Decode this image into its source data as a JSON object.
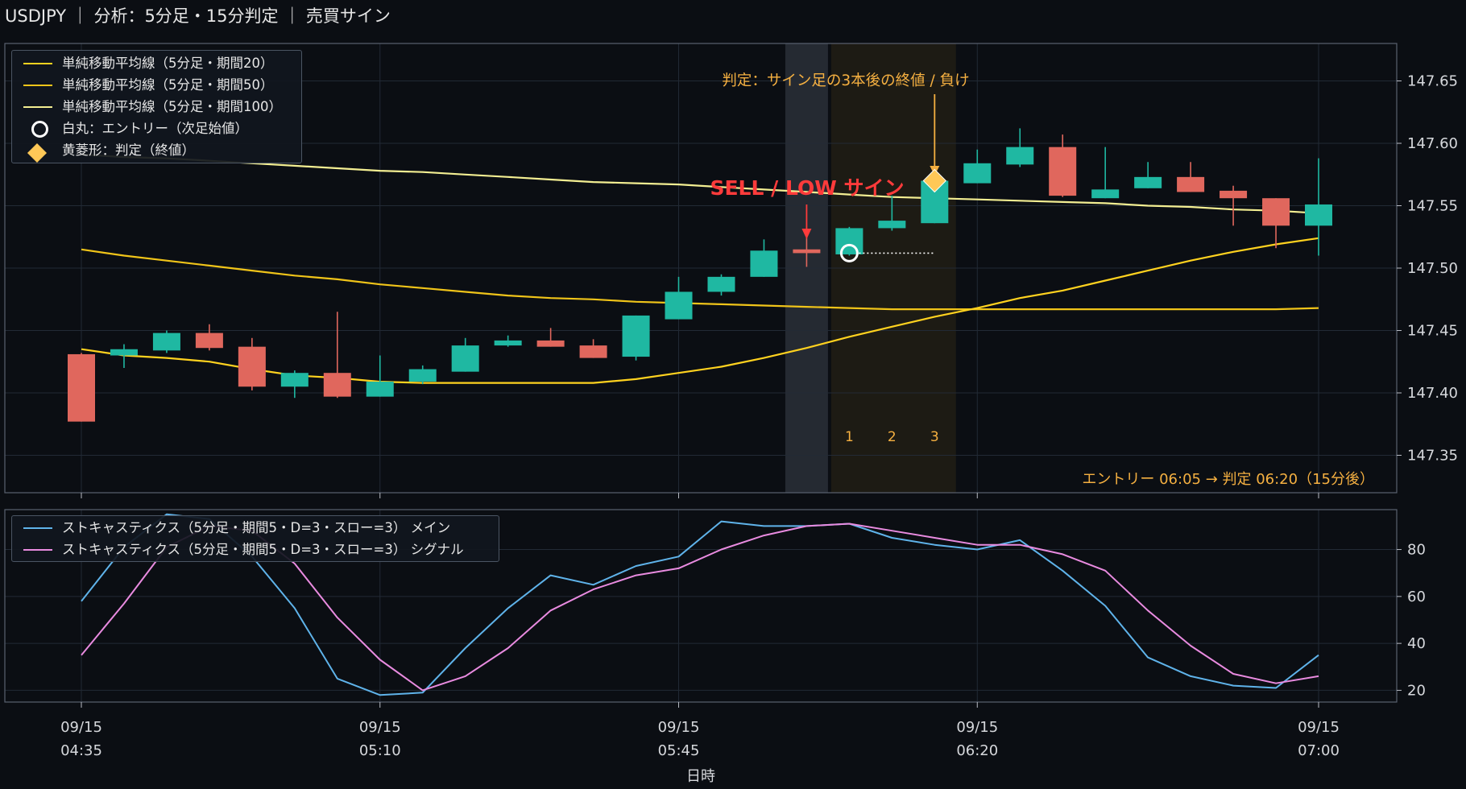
{
  "header": {
    "title": "USDJPY ｜ 分析：5分足・15分判定 ｜ 売買サイン"
  },
  "colors": {
    "bg": "#0b0e13",
    "up": "#1fb8a2",
    "down": "#e0675d",
    "sma20": "#ffd21f",
    "sma50": "#f0c419",
    "sma100": "#f3ee92",
    "stoch_main": "#5fb3ea",
    "stoch_signal": "#e98be0",
    "accent": "#f5b041",
    "signal": "#ff3b3b"
  },
  "legend_price": [
    {
      "label": "単純移動平均線（5分足・期間20）",
      "swatch": "line",
      "color": "#ffd21f"
    },
    {
      "label": "単純移動平均線（5分足・期間50）",
      "swatch": "line",
      "color": "#f0c419"
    },
    {
      "label": "単純移動平均線（5分足・期間100）",
      "swatch": "line",
      "color": "#f3ee92"
    },
    {
      "label": "白丸：エントリー（次足始値）",
      "swatch": "circle-icon",
      "color": "#ffffff"
    },
    {
      "label": "黄菱形：判定（終値）",
      "swatch": "diamond-icon",
      "color": "#ffc857"
    }
  ],
  "legend_stoch": [
    {
      "label": "ストキャスティクス（5分足・期間5・D=3・スロー=3） メイン",
      "swatch": "line",
      "color": "#5fb3ea"
    },
    {
      "label": "ストキャスティクス（5分足・期間5・D=3・スロー=3） シグナル",
      "swatch": "line",
      "color": "#e98be0"
    }
  ],
  "chart_data": {
    "type": "candlestick",
    "x_times": [
      "04:35",
      "04:40",
      "04:45",
      "04:50",
      "04:55",
      "05:00",
      "05:05",
      "05:10",
      "05:15",
      "05:20",
      "05:25",
      "05:30",
      "05:35",
      "05:40",
      "05:45",
      "05:50",
      "05:55",
      "06:00",
      "06:05",
      "06:10",
      "06:15",
      "06:20",
      "06:25",
      "06:30",
      "06:35",
      "06:40",
      "06:45",
      "06:50",
      "06:55",
      "07:00"
    ],
    "x_tick_labels": [
      {
        "date": "09/15",
        "time": "04:35",
        "index": 0
      },
      {
        "date": "09/15",
        "time": "05:10",
        "index": 7
      },
      {
        "date": "09/15",
        "time": "05:45",
        "index": 14
      },
      {
        "date": "09/15",
        "time": "06:20",
        "index": 21
      },
      {
        "date": "09/15",
        "time": "07:00",
        "index": 29
      }
    ],
    "xlabel": "日時",
    "price_ylim": [
      147.32,
      147.68
    ],
    "price_yticks": [
      147.35,
      147.4,
      147.45,
      147.5,
      147.55,
      147.6,
      147.65
    ],
    "candles": [
      {
        "o": 147.431,
        "h": 147.432,
        "l": 147.377,
        "c": 147.377
      },
      {
        "o": 147.43,
        "h": 147.439,
        "l": 147.42,
        "c": 147.435
      },
      {
        "o": 147.434,
        "h": 147.45,
        "l": 147.432,
        "c": 147.448
      },
      {
        "o": 147.448,
        "h": 147.455,
        "l": 147.434,
        "c": 147.436
      },
      {
        "o": 147.437,
        "h": 147.444,
        "l": 147.402,
        "c": 147.405
      },
      {
        "o": 147.405,
        "h": 147.418,
        "l": 147.396,
        "c": 147.416
      },
      {
        "o": 147.416,
        "h": 147.465,
        "l": 147.396,
        "c": 147.397
      },
      {
        "o": 147.397,
        "h": 147.43,
        "l": 147.397,
        "c": 147.409
      },
      {
        "o": 147.409,
        "h": 147.422,
        "l": 147.407,
        "c": 147.419
      },
      {
        "o": 147.417,
        "h": 147.444,
        "l": 147.417,
        "c": 147.438
      },
      {
        "o": 147.438,
        "h": 147.446,
        "l": 147.437,
        "c": 147.442
      },
      {
        "o": 147.442,
        "h": 147.452,
        "l": 147.437,
        "c": 147.437
      },
      {
        "o": 147.438,
        "h": 147.443,
        "l": 147.428,
        "c": 147.428
      },
      {
        "o": 147.429,
        "h": 147.462,
        "l": 147.426,
        "c": 147.462
      },
      {
        "o": 147.459,
        "h": 147.493,
        "l": 147.459,
        "c": 147.481
      },
      {
        "o": 147.481,
        "h": 147.495,
        "l": 147.478,
        "c": 147.493
      },
      {
        "o": 147.493,
        "h": 147.523,
        "l": 147.493,
        "c": 147.514
      },
      {
        "o": 147.515,
        "h": 147.525,
        "l": 147.501,
        "c": 147.512
      },
      {
        "o": 147.511,
        "h": 147.533,
        "l": 147.51,
        "c": 147.532
      },
      {
        "o": 147.532,
        "h": 147.558,
        "l": 147.53,
        "c": 147.538
      },
      {
        "o": 147.536,
        "h": 147.572,
        "l": 147.536,
        "c": 147.57
      },
      {
        "o": 147.568,
        "h": 147.595,
        "l": 147.568,
        "c": 147.584
      },
      {
        "o": 147.583,
        "h": 147.612,
        "l": 147.581,
        "c": 147.597
      },
      {
        "o": 147.597,
        "h": 147.607,
        "l": 147.557,
        "c": 147.558
      },
      {
        "o": 147.556,
        "h": 147.597,
        "l": 147.556,
        "c": 147.563
      },
      {
        "o": 147.564,
        "h": 147.585,
        "l": 147.564,
        "c": 147.573
      },
      {
        "o": 147.573,
        "h": 147.585,
        "l": 147.561,
        "c": 147.561
      },
      {
        "o": 147.562,
        "h": 147.566,
        "l": 147.534,
        "c": 147.556
      },
      {
        "o": 147.556,
        "h": 147.556,
        "l": 147.516,
        "c": 147.534
      },
      {
        "o": 147.534,
        "h": 147.588,
        "l": 147.51,
        "c": 147.551
      }
    ],
    "sma20": [
      147.435,
      147.43,
      147.428,
      147.425,
      147.419,
      147.414,
      147.412,
      147.409,
      147.408,
      147.408,
      147.408,
      147.408,
      147.408,
      147.411,
      147.416,
      147.421,
      147.428,
      147.436,
      147.445,
      147.453,
      147.461,
      147.468,
      147.476,
      147.482,
      147.49,
      147.498,
      147.506,
      147.513,
      147.519,
      147.524
    ],
    "sma50": [
      147.515,
      147.51,
      147.506,
      147.502,
      147.498,
      147.494,
      147.491,
      147.487,
      147.484,
      147.481,
      147.478,
      147.476,
      147.475,
      147.473,
      147.472,
      147.471,
      147.47,
      147.469,
      147.468,
      147.467,
      147.467,
      147.467,
      147.467,
      147.467,
      147.467,
      147.467,
      147.467,
      147.467,
      147.467,
      147.468
    ],
    "sma100": [
      147.591,
      147.589,
      147.588,
      147.586,
      147.584,
      147.582,
      147.58,
      147.578,
      147.577,
      147.575,
      147.573,
      147.571,
      147.569,
      147.568,
      147.567,
      147.565,
      147.563,
      147.561,
      147.559,
      147.557,
      147.556,
      147.555,
      147.554,
      147.553,
      147.552,
      147.55,
      147.549,
      147.547,
      147.546,
      147.544
    ],
    "stoch_ylim": [
      15,
      97
    ],
    "stoch_yticks": [
      20,
      40,
      60,
      80
    ],
    "stoch_main": [
      58,
      81,
      95,
      93,
      77,
      55,
      25,
      18,
      19,
      38,
      55,
      69,
      65,
      73,
      77,
      92,
      90,
      90,
      91,
      85,
      82,
      80,
      84,
      71,
      56,
      34,
      26,
      22,
      21,
      35
    ],
    "stoch_signal": [
      35,
      57,
      81,
      90,
      88,
      74,
      51,
      33,
      20,
      26,
      38,
      54,
      63,
      69,
      72,
      80,
      86,
      90,
      91,
      88,
      85,
      82,
      82,
      78,
      71,
      54,
      39,
      27,
      23,
      26
    ],
    "annotations": {
      "signal_label": "SELL / LOW サイン",
      "judge_label": "判定：サイン足の3本後の終値 / 負け",
      "count_labels": [
        "1",
        "2",
        "3"
      ],
      "footer": "エントリー 06:05 → 判定 06:20（15分後）",
      "signal_index": 17,
      "entry_index": 18,
      "entry_price": 147.512,
      "judge_index": 20,
      "judge_price": 147.57,
      "entry_time": "06:05",
      "judge_time": "06:20"
    }
  }
}
